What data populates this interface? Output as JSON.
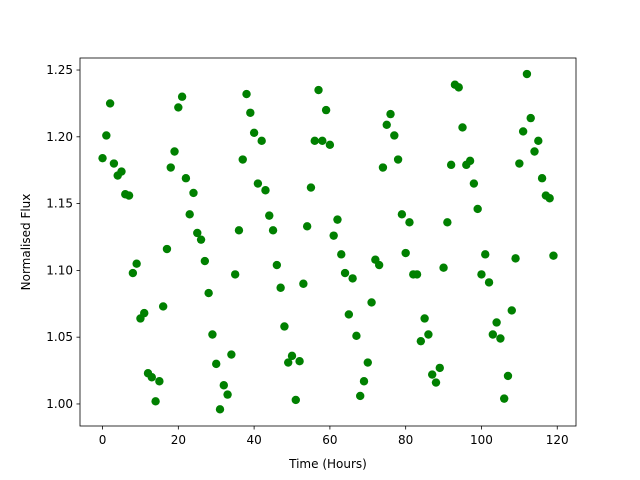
{
  "chart_data": {
    "type": "scatter",
    "xlabel": "Time (Hours)",
    "ylabel": "Normalised Flux",
    "color": "#008000",
    "xlim": [
      -5.95,
      124.95
    ],
    "ylim": [
      0.9835,
      1.259
    ],
    "xticks": [
      0,
      20,
      40,
      60,
      80,
      100,
      120
    ],
    "yticks": [
      {
        "value": 1.0,
        "label": "1.00"
      },
      1.05,
      {
        "value": 1.1,
        "label": "1.10"
      },
      1.15,
      {
        "value": 1.2,
        "label": "1.20"
      },
      1.25
    ],
    "x": [
      0,
      1,
      2,
      3,
      4,
      5,
      6,
      7,
      8,
      9,
      10,
      11,
      12,
      13,
      14,
      15,
      16,
      17,
      18,
      19,
      20,
      21,
      22,
      23,
      24,
      25,
      26,
      27,
      28,
      29,
      30,
      31,
      32,
      33,
      34,
      35,
      36,
      37,
      38,
      39,
      40,
      41,
      42,
      43,
      44,
      45,
      46,
      47,
      48,
      49,
      50,
      51,
      52,
      53,
      54,
      55,
      56,
      57,
      58,
      59,
      60,
      61,
      62,
      63,
      64,
      65,
      66,
      67,
      68,
      69,
      70,
      71,
      72,
      73,
      74,
      75,
      76,
      77,
      78,
      79,
      80,
      81,
      82,
      83,
      84,
      85,
      86,
      87,
      88,
      89,
      90,
      91,
      92,
      93,
      94,
      95,
      96,
      97,
      98,
      99,
      100,
      101,
      102,
      103,
      104,
      105,
      106,
      107,
      108,
      109,
      110,
      111,
      112,
      113,
      114,
      115,
      116,
      117,
      118,
      119
    ],
    "values": [
      1.184,
      1.201,
      1.225,
      1.18,
      1.171,
      1.174,
      1.157,
      1.156,
      1.098,
      1.105,
      1.064,
      1.068,
      1.023,
      1.02,
      1.002,
      1.017,
      1.073,
      1.116,
      1.177,
      1.189,
      1.222,
      1.23,
      1.169,
      1.142,
      1.158,
      1.128,
      1.123,
      1.107,
      1.083,
      1.052,
      1.03,
      0.996,
      1.014,
      1.007,
      1.037,
      1.097,
      1.13,
      1.183,
      1.232,
      1.218,
      1.203,
      1.165,
      1.197,
      1.16,
      1.141,
      1.13,
      1.104,
      1.087,
      1.058,
      1.031,
      1.036,
      1.003,
      1.032,
      1.09,
      1.133,
      1.162,
      1.197,
      1.235,
      1.197,
      1.22,
      1.194,
      1.126,
      1.138,
      1.112,
      1.098,
      1.067,
      1.094,
      1.051,
      1.006,
      1.017,
      1.031,
      1.076,
      1.108,
      1.104,
      1.177,
      1.209,
      1.217,
      1.201,
      1.183,
      1.142,
      1.113,
      1.136,
      1.097,
      1.097,
      1.047,
      1.064,
      1.052,
      1.022,
      1.016,
      1.027,
      1.102,
      1.136,
      1.179,
      1.239,
      1.237,
      1.207,
      1.179,
      1.182,
      1.165,
      1.146,
      1.097,
      1.112,
      1.091,
      1.052,
      1.061,
      1.049,
      1.004,
      1.021,
      1.07,
      1.109,
      1.18,
      1.204,
      1.247,
      1.214,
      1.189,
      1.197,
      1.169,
      1.156,
      1.154,
      1.111
    ]
  }
}
